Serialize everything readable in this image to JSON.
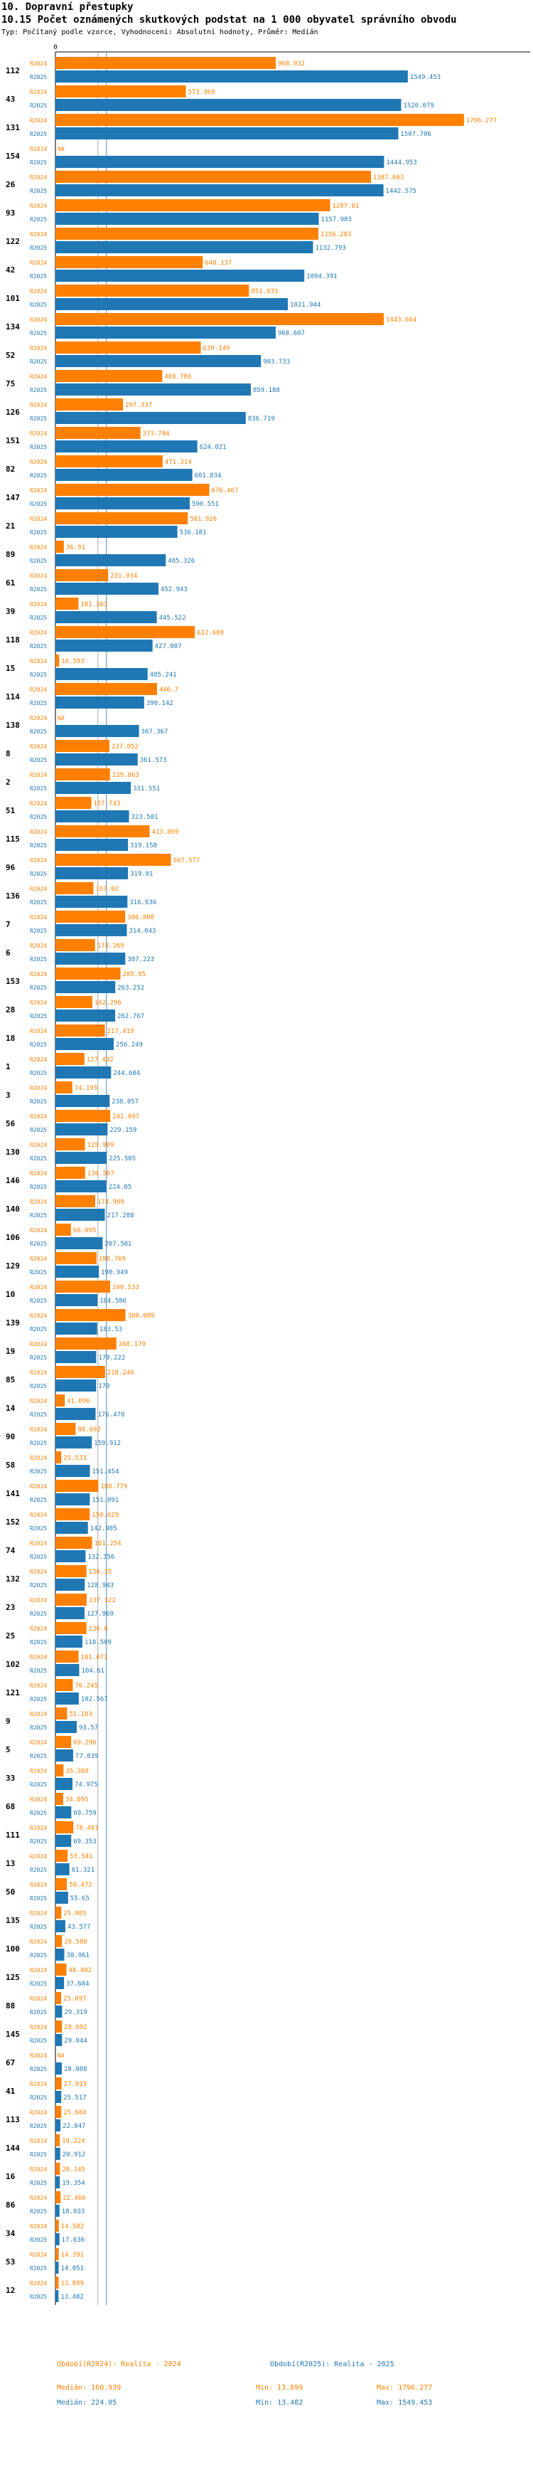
{
  "header": {
    "section": "10. Dopravní přestupky",
    "title": "10.15 Počet oznámených skutkových podstat na 1 000 obyvatel správního obvodu",
    "subtitle": "Typ: Počítaný podle vzorce, Vyhodnocení: Absolutní hodnoty, Průměr: Medián"
  },
  "colors": {
    "r2024": "#ff8000",
    "r2025": "#1f77b4",
    "median": "#87aecf"
  },
  "chart_data": {
    "type": "bar",
    "orientation": "horizontal",
    "axis_min_label": "0",
    "median_value": 224.05,
    "missing_value_label": "NA",
    "series_names": [
      "R2024",
      "R2025"
    ],
    "xlim": [
      0,
      1800
    ],
    "categories": [
      {
        "label": "112",
        "r2024": 968.932,
        "r2025": 1549.453
      },
      {
        "label": "43",
        "r2024": 573.369,
        "r2025": 1520.079
      },
      {
        "label": "131",
        "r2024": 1796.277,
        "r2025": 1507.706
      },
      {
        "label": "154",
        "r2024": null,
        "r2025": 1444.953
      },
      {
        "label": "26",
        "r2024": 1387.603,
        "r2025": 1442.575
      },
      {
        "label": "93",
        "r2024": 1207.61,
        "r2025": 1157.983
      },
      {
        "label": "122",
        "r2024": 1156.283,
        "r2025": 1132.793
      },
      {
        "label": "42",
        "r2024": 648.137,
        "r2025": 1094.391
      },
      {
        "label": "101",
        "r2024": 851.033,
        "r2025": 1021.944
      },
      {
        "label": "134",
        "r2024": 1443.664,
        "r2025": 968.607
      },
      {
        "label": "52",
        "r2024": 639.149,
        "r2025": 903.733
      },
      {
        "label": "75",
        "r2024": 469.786,
        "r2025": 859.188
      },
      {
        "label": "126",
        "r2024": 297.337,
        "r2025": 836.719
      },
      {
        "label": "151",
        "r2024": 373.784,
        "r2025": 624.021
      },
      {
        "label": "82",
        "r2024": 471.314,
        "r2025": 601.834
      },
      {
        "label": "147",
        "r2024": 676.467,
        "r2025": 590.551
      },
      {
        "label": "21",
        "r2024": 581.926,
        "r2025": 536.181
      },
      {
        "label": "89",
        "r2024": 36.91,
        "r2025": 485.326
      },
      {
        "label": "61",
        "r2024": 231.934,
        "r2025": 452.943
      },
      {
        "label": "39",
        "r2024": 101.363,
        "r2025": 445.522
      },
      {
        "label": "118",
        "r2024": 612.689,
        "r2025": 427.087
      },
      {
        "label": "15",
        "r2024": 16.593,
        "r2025": 405.241
      },
      {
        "label": "114",
        "r2024": 446.7,
        "r2025": 390.142
      },
      {
        "label": "138",
        "r2024": null,
        "r2025": 367.367
      },
      {
        "label": "8",
        "r2024": 237.052,
        "r2025": 361.573
      },
      {
        "label": "2",
        "r2024": 239.863,
        "r2025": 331.551
      },
      {
        "label": "51",
        "r2024": 157.743,
        "r2025": 323.581
      },
      {
        "label": "115",
        "r2024": 413.869,
        "r2025": 319.158
      },
      {
        "label": "96",
        "r2024": 507.577,
        "r2025": 319.01
      },
      {
        "label": "136",
        "r2024": 167.02,
        "r2025": 316.636
      },
      {
        "label": "7",
        "r2024": 306.808,
        "r2025": 314.043
      },
      {
        "label": "6",
        "r2024": 174.269,
        "r2025": 307.223
      },
      {
        "label": "153",
        "r2024": 285.95,
        "r2025": 263.252
      },
      {
        "label": "28",
        "r2024": 162.296,
        "r2025": 262.767
      },
      {
        "label": "18",
        "r2024": 217.419,
        "r2025": 256.249
      },
      {
        "label": "1",
        "r2024": 127.492,
        "r2025": 244.604
      },
      {
        "label": "3",
        "r2024": 74.195,
        "r2025": 238.057
      },
      {
        "label": "56",
        "r2024": 241.097,
        "r2025": 229.159
      },
      {
        "label": "130",
        "r2024": 129.909,
        "r2025": 225.505
      },
      {
        "label": "146",
        "r2024": 130.567,
        "r2025": 224.05
      },
      {
        "label": "140",
        "r2024": 174.969,
        "r2025": 217.288
      },
      {
        "label": "106",
        "r2024": 68.095,
        "r2025": 207.501
      },
      {
        "label": "129",
        "r2024": 180.769,
        "r2025": 190.949
      },
      {
        "label": "10",
        "r2024": 240.533,
        "r2025": 184.586
      },
      {
        "label": "139",
        "r2024": 308.089,
        "r2025": 183.53
      },
      {
        "label": "19",
        "r2024": 268.179,
        "r2025": 179.222
      },
      {
        "label": "85",
        "r2024": 218.246,
        "r2025": 179
      },
      {
        "label": "14",
        "r2024": 41.096,
        "r2025": 176.478
      },
      {
        "label": "90",
        "r2024": 88.692,
        "r2025": 159.912
      },
      {
        "label": "58",
        "r2024": 25.533,
        "r2025": 151.454
      },
      {
        "label": "141",
        "r2024": 188.779,
        "r2025": 151.091
      },
      {
        "label": "152",
        "r2024": 150.629,
        "r2025": 142.905
      },
      {
        "label": "74",
        "r2024": 161.254,
        "r2025": 132.356
      },
      {
        "label": "132",
        "r2024": 136.35,
        "r2025": 128.943
      },
      {
        "label": "23",
        "r2024": 137.322,
        "r2025": 127.969
      },
      {
        "label": "25",
        "r2024": 136.6,
        "r2025": 118.509
      },
      {
        "label": "102",
        "r2024": 101.671,
        "r2025": 104.61
      },
      {
        "label": "121",
        "r2024": 76.245,
        "r2025": 102.567
      },
      {
        "label": "9",
        "r2024": 51.183,
        "r2025": 93.57
      },
      {
        "label": "5",
        "r2024": 69.296,
        "r2025": 77.839
      },
      {
        "label": "33",
        "r2024": 35.369,
        "r2025": 74.975
      },
      {
        "label": "68",
        "r2024": 34.095,
        "r2025": 69.759
      },
      {
        "label": "111",
        "r2024": 78.491,
        "r2025": 69.353
      },
      {
        "label": "13",
        "r2024": 53.541,
        "r2025": 61.321
      },
      {
        "label": "50",
        "r2024": 50.472,
        "r2025": 55.65
      },
      {
        "label": "135",
        "r2024": 25.805,
        "r2025": 43.577
      },
      {
        "label": "100",
        "r2024": 28.588,
        "r2025": 38.961
      },
      {
        "label": "125",
        "r2024": 48.402,
        "r2025": 37.684
      },
      {
        "label": "88",
        "r2024": 25.097,
        "r2025": 29.319
      },
      {
        "label": "145",
        "r2024": 28.692,
        "r2025": 29.044
      },
      {
        "label": "67",
        "r2024": null,
        "r2025": 28.088
      },
      {
        "label": "41",
        "r2024": 27.019,
        "r2025": 25.517
      },
      {
        "label": "113",
        "r2024": 25.604,
        "r2025": 22.047
      },
      {
        "label": "144",
        "r2024": 19.224,
        "r2025": 20.912
      },
      {
        "label": "16",
        "r2024": 20.145,
        "r2025": 19.354
      },
      {
        "label": "86",
        "r2024": 22.466,
        "r2025": 18.033
      },
      {
        "label": "34",
        "r2024": 14.582,
        "r2025": 17.636
      },
      {
        "label": "53",
        "r2024": 14.391,
        "r2025": 14.051
      },
      {
        "label": "12",
        "r2024": 13.899,
        "r2025": 13.482
      }
    ]
  },
  "footer": {
    "legend_2024": "Období(R2024): Realita - 2024",
    "legend_2025": "Období(R2025): Realita - 2025",
    "median_2024": "Medián: 160.939",
    "min_2024": "Min: 13.899",
    "max_2024": "Max: 1796.277",
    "median_2025": "Medián: 224.05",
    "min_2025": "Min: 13.482",
    "max_2025": "Max: 1549.453"
  }
}
